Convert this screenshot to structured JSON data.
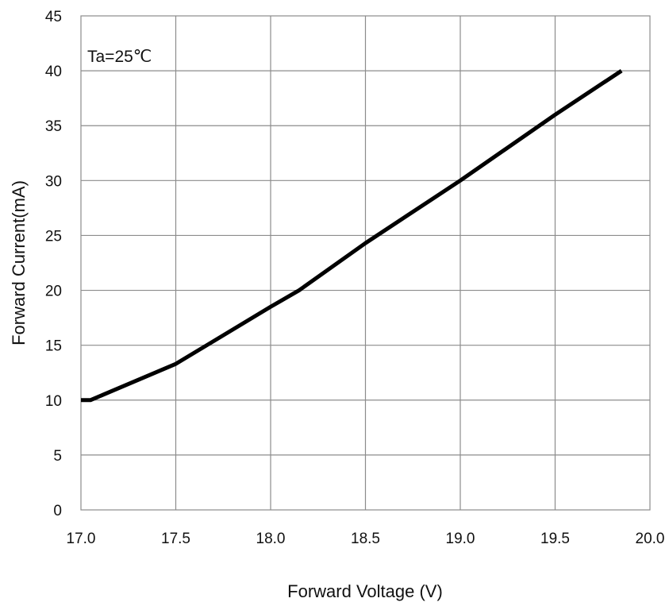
{
  "chart_data": {
    "type": "line",
    "title": "",
    "xlabel": "Forward Voltage (V)",
    "ylabel": "Forward Current(mA)",
    "xlim": [
      17.0,
      20.0
    ],
    "ylim": [
      0,
      45
    ],
    "x_ticks": [
      "17.0",
      "17.5",
      "18.0",
      "18.5",
      "19.0",
      "19.5",
      "20.0"
    ],
    "y_ticks": [
      "0",
      "5",
      "10",
      "15",
      "20",
      "25",
      "30",
      "35",
      "40",
      "45"
    ],
    "grid": true,
    "legend": "none",
    "annotation": "Ta=25℃",
    "line_color": "#000000",
    "series": [
      {
        "x": [
          17.0,
          17.05,
          17.5,
          18.0,
          18.15,
          18.5,
          19.0,
          19.5,
          19.85
        ],
        "y": [
          10,
          10,
          13.3,
          18.5,
          20,
          24.3,
          30,
          36,
          40
        ]
      }
    ]
  }
}
